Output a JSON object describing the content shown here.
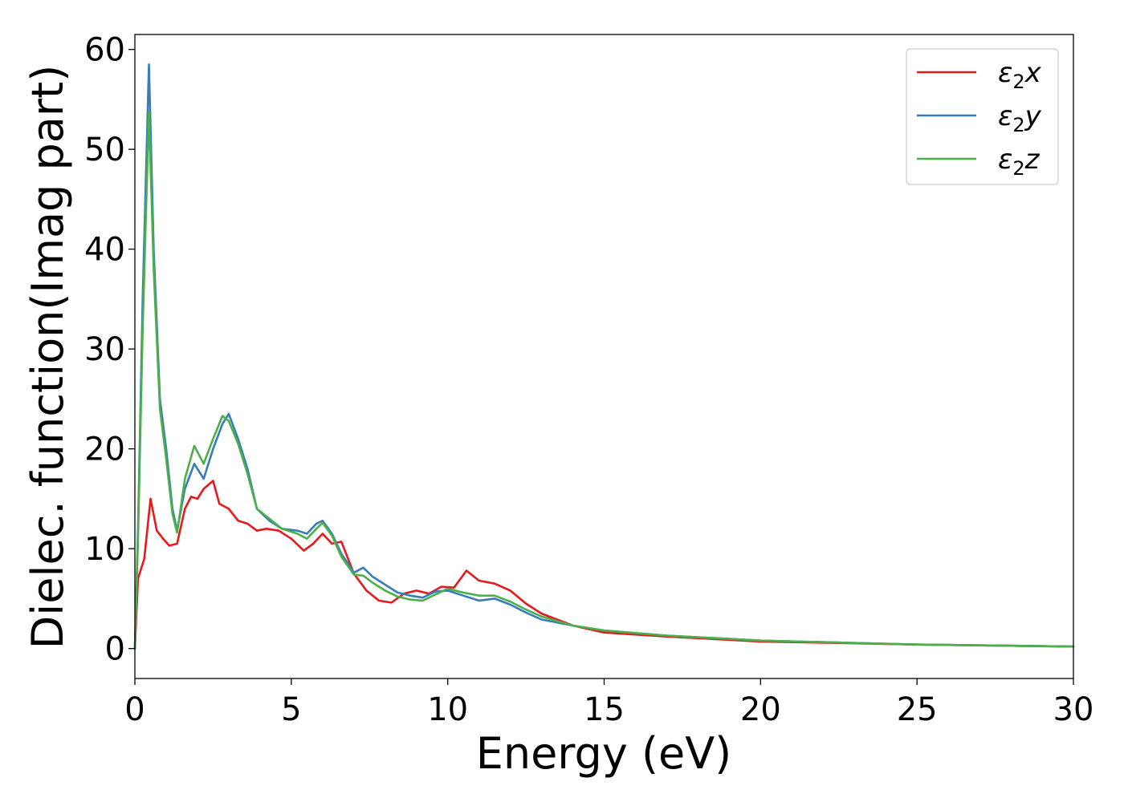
{
  "chart_data": {
    "type": "line",
    "title": "",
    "xlabel": "Energy (eV)",
    "ylabel": "Dielec. function(Imag part)",
    "xlim": [
      0,
      30
    ],
    "ylim": [
      -3,
      61.5
    ],
    "xticks": [
      0,
      5,
      10,
      15,
      20,
      25,
      30
    ],
    "yticks": [
      0,
      10,
      20,
      30,
      40,
      50,
      60
    ],
    "grid": false,
    "legend_position": "top-right",
    "series": [
      {
        "name": "ε2x",
        "color": "#e41a1c",
        "x": [
          0,
          0.1,
          0.3,
          0.5,
          0.7,
          0.9,
          1.1,
          1.35,
          1.6,
          1.8,
          2.0,
          2.2,
          2.5,
          2.7,
          3.0,
          3.3,
          3.6,
          3.9,
          4.2,
          4.6,
          5.0,
          5.4,
          5.7,
          6.0,
          6.3,
          6.6,
          7.0,
          7.4,
          7.8,
          8.2,
          8.6,
          9.0,
          9.4,
          9.8,
          10.2,
          10.6,
          11.0,
          11.5,
          12.0,
          12.5,
          13.0,
          14.0,
          15.0,
          17.0,
          20.0,
          25.0,
          30.0
        ],
        "values": [
          0,
          7,
          9,
          15,
          11.8,
          11,
          10.3,
          10.5,
          14,
          15.2,
          15,
          16,
          16.8,
          14.5,
          14,
          12.8,
          12.5,
          11.8,
          12,
          11.8,
          11,
          9.8,
          10.5,
          11.5,
          10.5,
          10.7,
          7.5,
          5.8,
          4.8,
          4.6,
          5.5,
          5.8,
          5.5,
          6.2,
          6.1,
          7.8,
          6.8,
          6.5,
          5.8,
          4.5,
          3.5,
          2.3,
          1.6,
          1.2,
          0.7,
          0.4,
          0.2
        ]
      },
      {
        "name": "ε2y",
        "color": "#377eb8",
        "x": [
          0,
          0.1,
          0.25,
          0.45,
          0.6,
          0.8,
          1.0,
          1.2,
          1.35,
          1.6,
          1.9,
          2.2,
          2.5,
          2.8,
          3.0,
          3.3,
          3.6,
          3.9,
          4.3,
          4.7,
          5.2,
          5.5,
          5.8,
          6.0,
          6.3,
          6.6,
          7.0,
          7.3,
          7.6,
          8.0,
          8.4,
          8.8,
          9.2,
          9.6,
          10.0,
          10.5,
          11.0,
          11.5,
          12.0,
          12.5,
          13.0,
          14.0,
          15.0,
          17.0,
          20.0,
          25.0,
          30.0
        ],
        "values": [
          0,
          12,
          35,
          58.5,
          40,
          25,
          20,
          14,
          11.8,
          16,
          18.5,
          17,
          20,
          22.5,
          23.5,
          21,
          18,
          14,
          12.8,
          12,
          11.8,
          11.5,
          12.5,
          12.8,
          11.5,
          9.5,
          7.6,
          8.1,
          7.2,
          6.4,
          5.6,
          5.3,
          5.1,
          5.7,
          5.8,
          5.3,
          4.8,
          5.0,
          4.4,
          3.6,
          2.9,
          2.3,
          1.8,
          1.3,
          0.8,
          0.4,
          0.2
        ]
      },
      {
        "name": "ε2z",
        "color": "#4daf4a",
        "x": [
          0,
          0.1,
          0.25,
          0.45,
          0.6,
          0.8,
          1.0,
          1.2,
          1.35,
          1.6,
          1.9,
          2.2,
          2.5,
          2.8,
          3.0,
          3.3,
          3.6,
          3.9,
          4.3,
          4.7,
          5.2,
          5.5,
          5.8,
          6.0,
          6.3,
          6.6,
          7.0,
          7.3,
          7.6,
          8.0,
          8.4,
          8.8,
          9.2,
          9.6,
          10.0,
          10.5,
          11.0,
          11.5,
          12.0,
          12.5,
          13.0,
          14.0,
          15.0,
          17.0,
          20.0,
          25.0,
          30.0
        ],
        "values": [
          0,
          11,
          32,
          53.8,
          38,
          24,
          19,
          13.5,
          11.6,
          17,
          20.3,
          18.5,
          21,
          23.3,
          22.8,
          20.5,
          17.5,
          14,
          13,
          12,
          11.5,
          11,
          12,
          12.6,
          11.3,
          9.2,
          7.4,
          7.3,
          6.6,
          5.8,
          5.2,
          4.9,
          4.8,
          5.4,
          6.0,
          5.6,
          5.3,
          5.3,
          4.7,
          3.9,
          3.2,
          2.3,
          1.8,
          1.3,
          0.8,
          0.4,
          0.2
        ]
      }
    ]
  }
}
